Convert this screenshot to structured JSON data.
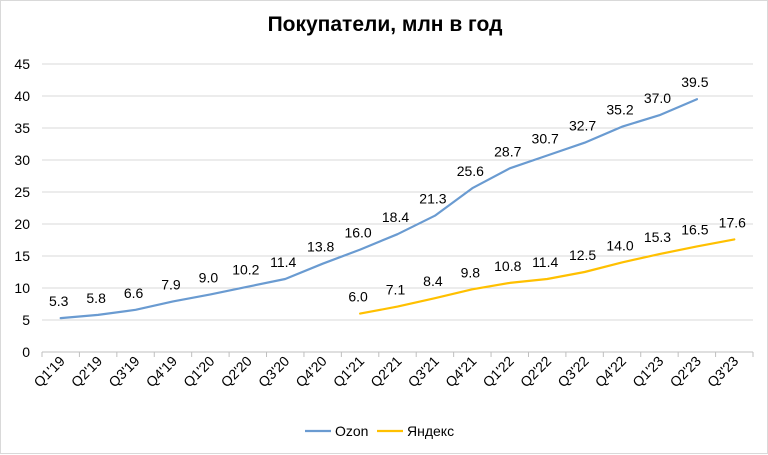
{
  "chart_data": {
    "type": "line",
    "title": "Покупатели, млн в год",
    "xlabel": "",
    "ylabel": "",
    "ylim": [
      0,
      45
    ],
    "yticks": [
      0,
      5,
      10,
      15,
      20,
      25,
      30,
      35,
      40,
      45
    ],
    "grid": true,
    "legend_position": "bottom",
    "categories": [
      "Q1'19",
      "Q2'19",
      "Q3'19",
      "Q4'19",
      "Q1'20",
      "Q2'20",
      "Q3'20",
      "Q4'20",
      "Q1'21",
      "Q2'21",
      "Q3'21",
      "Q4'21",
      "Q1'22",
      "Q2'22",
      "Q3'22",
      "Q4'22",
      "Q1'23",
      "Q2'23",
      "Q3'23"
    ],
    "series": [
      {
        "name": "Ozon",
        "color": "#6a9bd1",
        "values": [
          5.3,
          5.8,
          6.6,
          7.9,
          9.0,
          10.2,
          11.4,
          13.8,
          16.0,
          18.4,
          21.3,
          25.6,
          28.7,
          30.7,
          32.7,
          35.2,
          37.0,
          39.5,
          null
        ],
        "labels": [
          "5.3",
          "5.8",
          "6.6",
          "7.9",
          "9.0",
          "10.2",
          "11.4",
          "13.8",
          "16.0",
          "18.4",
          "21.3",
          "25.6",
          "28.7",
          "30.7",
          "32.7",
          "35.2",
          "37.0",
          "39.5",
          null
        ]
      },
      {
        "name": "Яндекс",
        "color": "#ffc000",
        "values": [
          null,
          null,
          null,
          null,
          null,
          null,
          null,
          null,
          6.0,
          7.1,
          8.4,
          9.8,
          10.8,
          11.4,
          12.5,
          14.0,
          15.3,
          16.5,
          17.6
        ],
        "labels": [
          null,
          null,
          null,
          null,
          null,
          null,
          null,
          null,
          "6.0",
          "7.1",
          "8.4",
          "9.8",
          "10.8",
          "11.4",
          "12.5",
          "14.0",
          "15.3",
          "16.5",
          "17.6"
        ]
      }
    ]
  }
}
